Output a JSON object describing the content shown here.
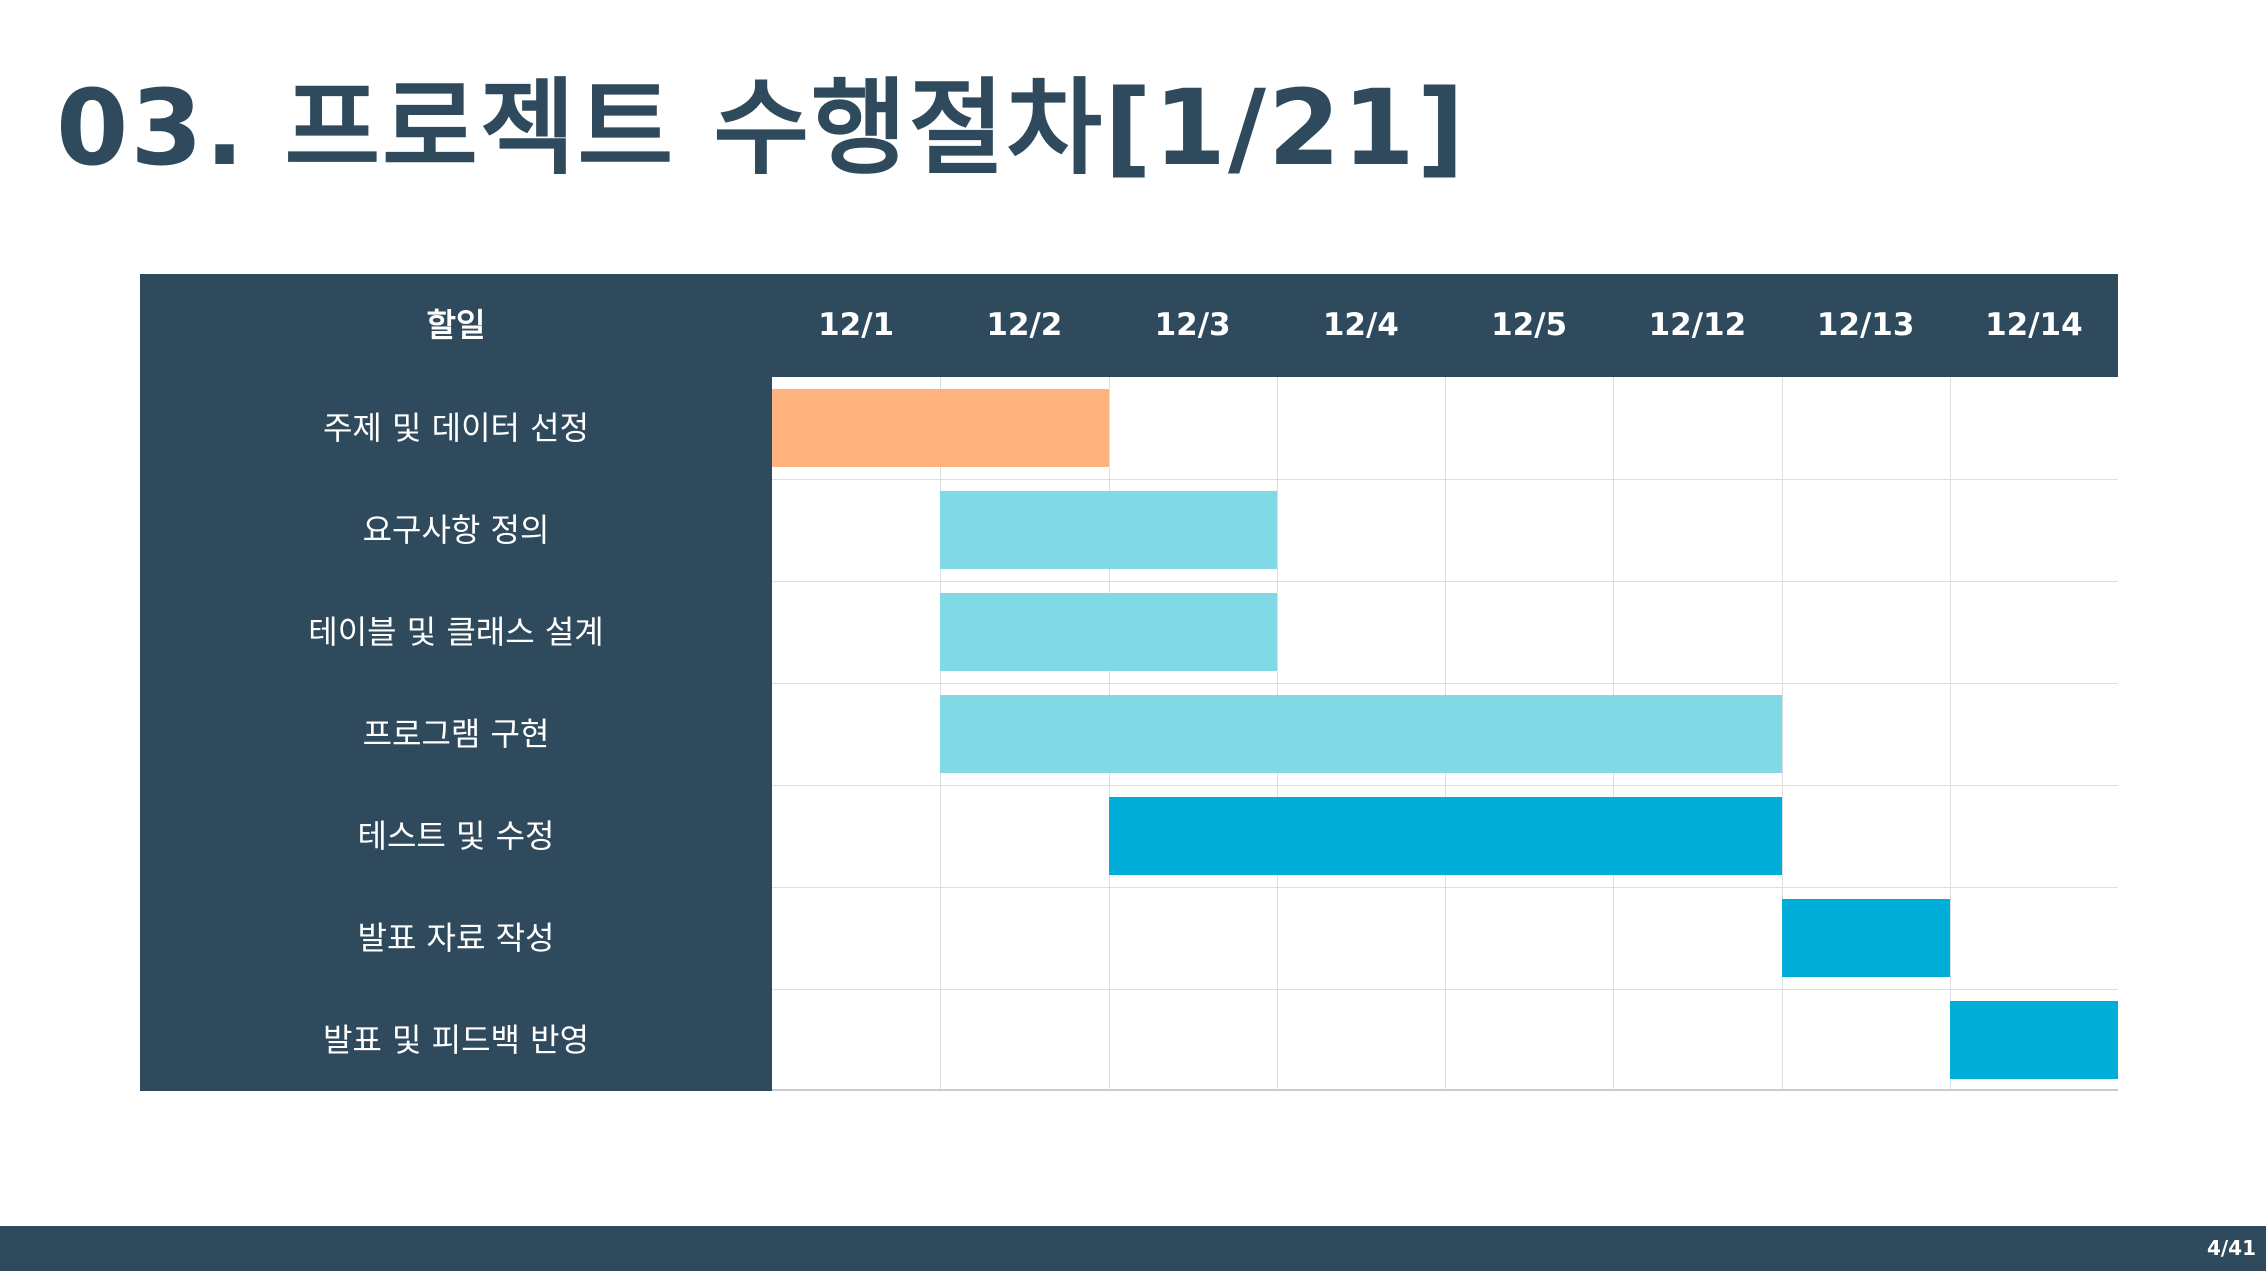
{
  "slide": {
    "title": "03. 프로젝트 수행절차[1/21]",
    "page_number": "4/41"
  },
  "colors": {
    "primary_dark": "#2f4a5c",
    "orange": "#ffb27d",
    "light_cyan": "#80d9e4",
    "cyan": "#00aed7",
    "grid_line": "#dcdfe2"
  },
  "chart_data": {
    "type": "gantt",
    "task_header": "할일",
    "dates": [
      "12/1",
      "12/2",
      "12/3",
      "12/4",
      "12/5",
      "12/12",
      "12/13",
      "12/14"
    ],
    "tasks": [
      {
        "name": "주제 및 데이터 선정",
        "start": "12/1",
        "end": "12/2",
        "color": "#ffb27d"
      },
      {
        "name": "요구사항 정의",
        "start": "12/2",
        "end": "12/3",
        "color": "#80d9e4"
      },
      {
        "name": "테이블 및 클래스 설계",
        "start": "12/2",
        "end": "12/3",
        "color": "#80d9e4"
      },
      {
        "name": "프로그램 구현",
        "start": "12/2",
        "end": "12/12",
        "color": "#80d9e4"
      },
      {
        "name": "테스트 및 수정",
        "start": "12/3",
        "end": "12/12",
        "color": "#00aed7"
      },
      {
        "name": "발표 자료 작성",
        "start": "12/13",
        "end": "12/13",
        "color": "#00aed7"
      },
      {
        "name": "발표 및 피드백 반영",
        "start": "12/14",
        "end": "12/14",
        "color": "#00aed7"
      }
    ]
  }
}
